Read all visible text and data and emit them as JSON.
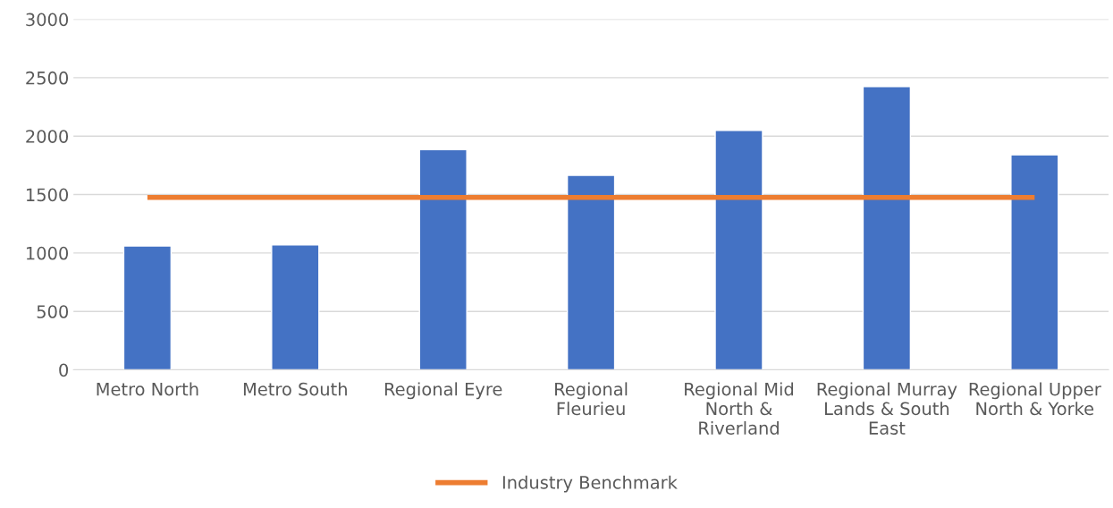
{
  "chart_data": {
    "type": "bar",
    "categories": [
      "Metro North",
      "Metro South",
      "Regional Eyre",
      "Regional Fleurieu",
      "Regional Mid North & Riverland",
      "Regional Murray Lands & South East",
      "Regional Upper North & Yorke"
    ],
    "series": [
      {
        "color": "#4472c4",
        "values": [
          1060,
          1070,
          1885,
          1665,
          2050,
          2425,
          1840
        ]
      },
      {
        "type": "line",
        "name": "Industry Benchmark",
        "color": "#ed7d31",
        "values": [
          1475,
          1475,
          1475,
          1475,
          1475,
          1475,
          1475
        ]
      }
    ],
    "ylim": [
      0,
      3000
    ],
    "yticks": [
      0,
      500,
      1000,
      1500,
      2000,
      2500,
      3000
    ],
    "grid": "y",
    "legend": "bottom",
    "marker": "none"
  }
}
